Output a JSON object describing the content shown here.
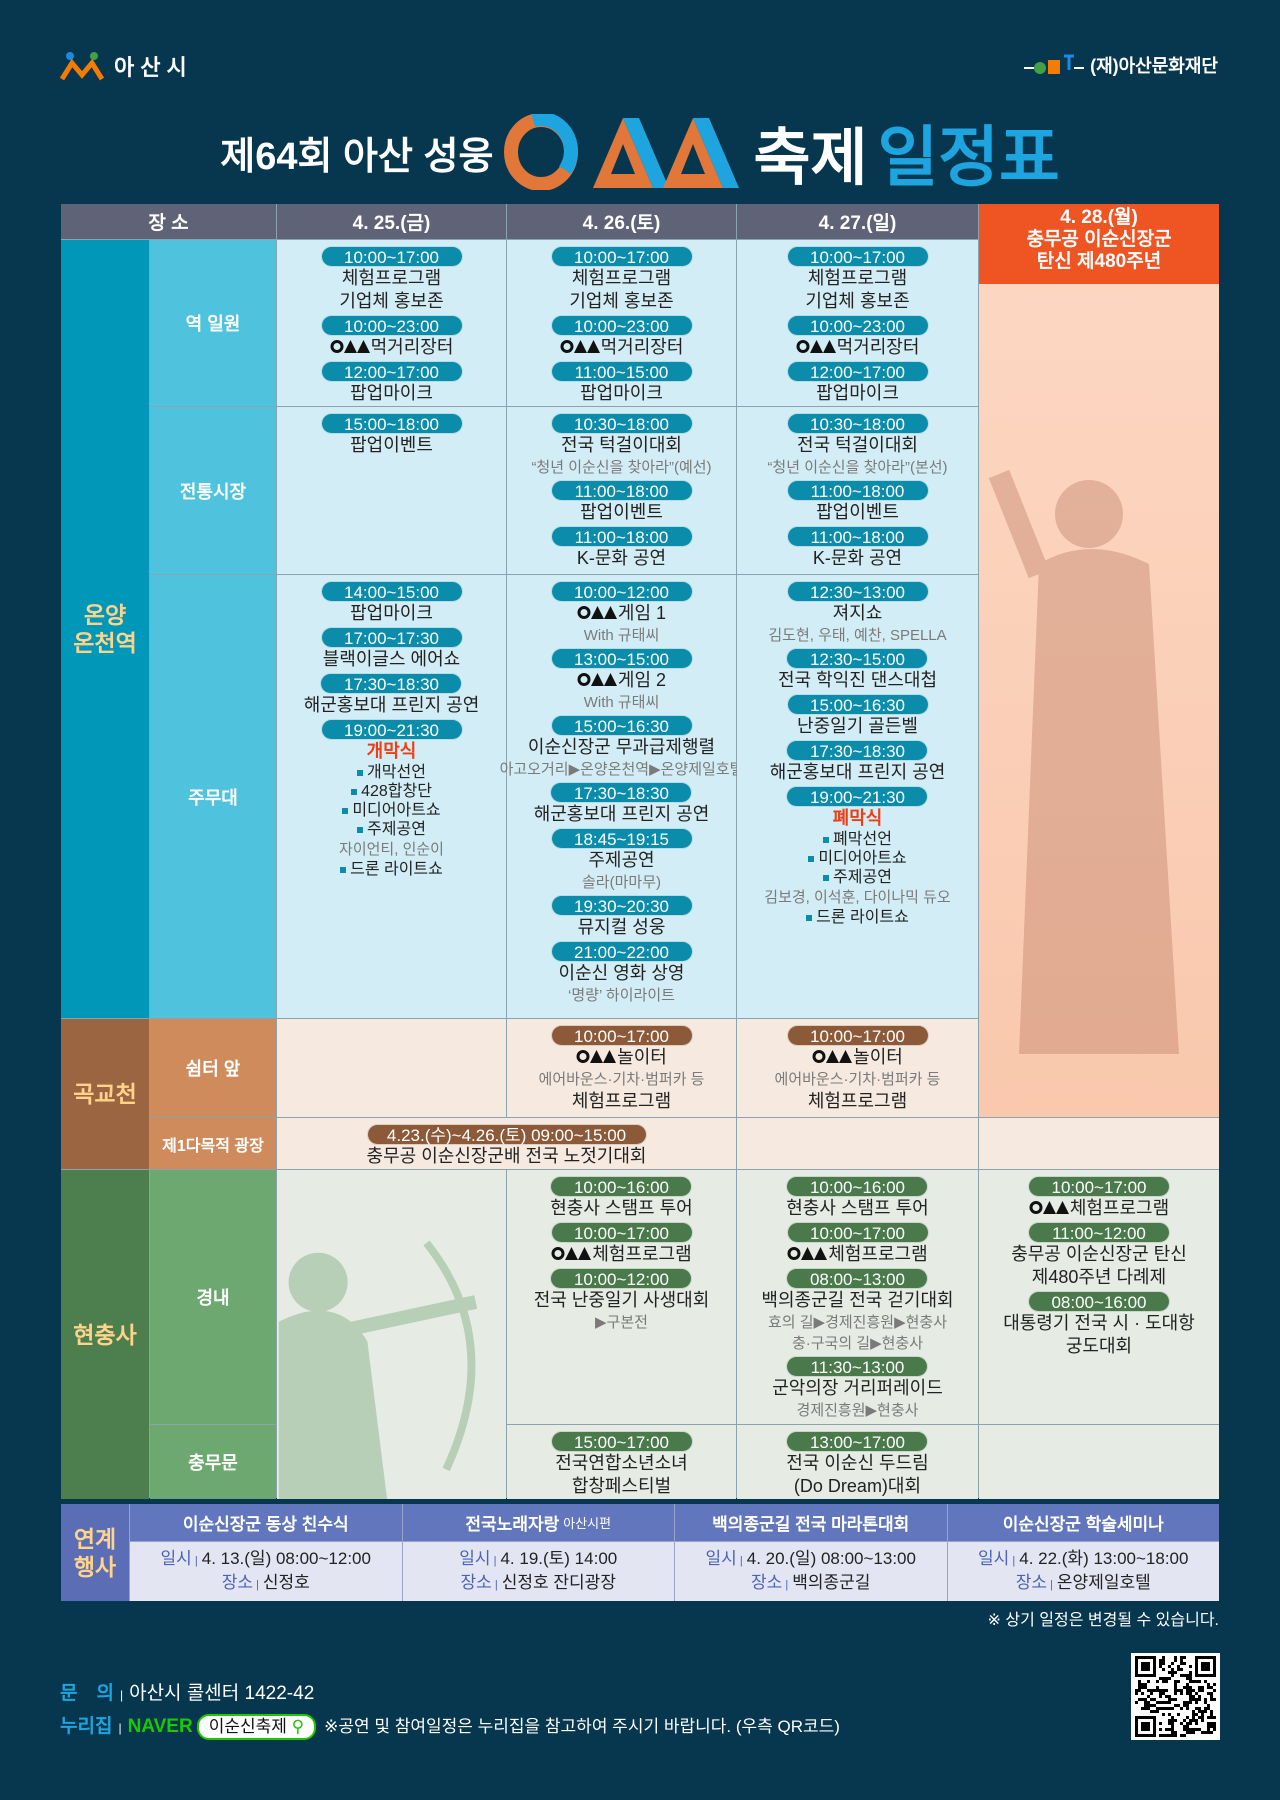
{
  "header": {
    "city_logo": "아산시",
    "foundation_logo": "(재)아산문화재단",
    "title_prefix": "제64회 아산 성웅",
    "title_mid": "축제",
    "title_suffix": "일정표"
  },
  "colors": {
    "background": "#06374f",
    "header_gray": "#5f6377",
    "day4_accent": "#ef5423",
    "title_accent": "#1ea5e0",
    "onyang": "#0097b8",
    "gokgyo": "#9a6540",
    "hyeonchungsa": "#4d7f4e",
    "events": "#6176bc"
  },
  "schedule": {
    "header": {
      "venue": "장 소",
      "d25": "4. 25.(금)",
      "d26": "4. 26.(토)",
      "d27": "4. 27.(일)",
      "d28": "4. 28.(월)\n충무공 이순신장군\n탄신 제480주년"
    },
    "groups": {
      "onyang": "온양\n온천역",
      "gokgyo": "곡교천",
      "hc": "현충사"
    },
    "venues": {
      "yeok": "역 일원",
      "market": "전통시장",
      "stage": "주무대",
      "shelter": "쉼터 앞",
      "plaza": "제1다목적 광장",
      "inner": "경내",
      "gate": "충무문"
    },
    "cells": {
      "yeok_d25": {
        "items": [
          {
            "time": "10:00~17:00",
            "lines": [
              {
                "t": "체험프로그램"
              },
              {
                "t": "기업체 홍보존"
              }
            ]
          },
          {
            "time": "10:00~23:00",
            "lines": [
              {
                "t": "먹거리장터",
                "o": true
              }
            ]
          },
          {
            "time": "12:00~17:00",
            "lines": [
              {
                "t": "팝업마이크"
              }
            ]
          }
        ]
      },
      "yeok_d26": {
        "items": [
          {
            "time": "10:00~17:00",
            "lines": [
              {
                "t": "체험프로그램"
              },
              {
                "t": "기업체 홍보존"
              }
            ]
          },
          {
            "time": "10:00~23:00",
            "lines": [
              {
                "t": "먹거리장터",
                "o": true
              }
            ]
          },
          {
            "time": "11:00~15:00",
            "lines": [
              {
                "t": "팝업마이크"
              }
            ]
          }
        ]
      },
      "yeok_d27": {
        "items": [
          {
            "time": "10:00~17:00",
            "lines": [
              {
                "t": "체험프로그램"
              },
              {
                "t": "기업체 홍보존"
              }
            ]
          },
          {
            "time": "10:00~23:00",
            "lines": [
              {
                "t": "먹거리장터",
                "o": true
              }
            ]
          },
          {
            "time": "12:00~17:00",
            "lines": [
              {
                "t": "팝업마이크"
              }
            ]
          }
        ]
      },
      "market_d25": {
        "items": [
          {
            "time": "15:00~18:00",
            "lines": [
              {
                "t": "팝업이벤트"
              }
            ]
          }
        ]
      },
      "market_d26": {
        "items": [
          {
            "time": "10:30~18:00",
            "lines": [
              {
                "t": "전국 턱걸이대회"
              },
              {
                "t": "“청년 이순신을 찾아라”(예선)",
                "k": "sub"
              }
            ]
          },
          {
            "time": "11:00~18:00",
            "lines": [
              {
                "t": "팝업이벤트"
              }
            ]
          },
          {
            "time": "11:00~18:00",
            "lines": [
              {
                "t": "K-문화 공연"
              }
            ]
          }
        ]
      },
      "market_d27": {
        "items": [
          {
            "time": "10:30~18:00",
            "lines": [
              {
                "t": "전국 턱걸이대회"
              },
              {
                "t": "“청년 이순신을 찾아라”(본선)",
                "k": "sub"
              }
            ]
          },
          {
            "time": "11:00~18:00",
            "lines": [
              {
                "t": "팝업이벤트"
              }
            ]
          },
          {
            "time": "11:00~18:00",
            "lines": [
              {
                "t": "K-문화 공연"
              }
            ]
          }
        ]
      },
      "stage_d25": {
        "items": [
          {
            "time": "14:00~15:00",
            "lines": [
              {
                "t": "팝업마이크"
              }
            ]
          },
          {
            "time": "17:00~17:30",
            "lines": [
              {
                "t": "블랙이글스 에어쇼"
              }
            ]
          },
          {
            "time": "17:30~18:30",
            "lines": [
              {
                "t": "해군홍보대 프린지 공연"
              }
            ]
          },
          {
            "time": "19:00~21:30",
            "lines": [
              {
                "t": "개막식",
                "k": "red"
              },
              {
                "t": "개막선언",
                "k": "bullet"
              },
              {
                "t": "428합창단",
                "k": "bullet"
              },
              {
                "t": "미디어아트쇼",
                "k": "bullet"
              },
              {
                "t": "주제공연",
                "k": "bullet"
              },
              {
                "t": "자이언티, 인순이",
                "k": "sub"
              },
              {
                "t": "드론 라이트쇼",
                "k": "bullet"
              }
            ]
          }
        ]
      },
      "stage_d26": {
        "items": [
          {
            "time": "10:00~12:00",
            "lines": [
              {
                "t": "게임 1",
                "o": true
              },
              {
                "t": "With 규태씨",
                "k": "sub"
              }
            ]
          },
          {
            "time": "13:00~15:00",
            "lines": [
              {
                "t": "게임 2",
                "o": true
              },
              {
                "t": "With 규태씨",
                "k": "sub"
              }
            ]
          },
          {
            "time": "15:00~16:30",
            "lines": [
              {
                "t": "이순신장군 무과급제행렬"
              },
              {
                "t": "아고오거리▶온양온천역▶온양제일호텔",
                "k": "sub"
              }
            ]
          },
          {
            "time": "17:30~18:30",
            "lines": [
              {
                "t": "해군홍보대 프린지 공연"
              }
            ]
          },
          {
            "time": "18:45~19:15",
            "lines": [
              {
                "t": "주제공연"
              },
              {
                "t": "솔라(마마무)",
                "k": "sub"
              }
            ]
          },
          {
            "time": "19:30~20:30",
            "lines": [
              {
                "t": "뮤지컬 성웅"
              }
            ]
          },
          {
            "time": "21:00~22:00",
            "lines": [
              {
                "t": "이순신 영화 상영"
              },
              {
                "t": "‘명량’ 하이라이트",
                "k": "sub"
              }
            ]
          }
        ]
      },
      "stage_d27": {
        "items": [
          {
            "time": "12:30~13:00",
            "lines": [
              {
                "t": "져지쇼"
              },
              {
                "t": "김도현, 우태, 예찬, SPELLA",
                "k": "sub"
              }
            ]
          },
          {
            "time": "12:30~15:00",
            "lines": [
              {
                "t": "전국 학익진 댄스대첩"
              }
            ]
          },
          {
            "time": "15:00~16:30",
            "lines": [
              {
                "t": "난중일기 골든벨"
              }
            ]
          },
          {
            "time": "17:30~18:30",
            "lines": [
              {
                "t": "해군홍보대 프린지 공연"
              }
            ]
          },
          {
            "time": "19:00~21:30",
            "lines": [
              {
                "t": "폐막식",
                "k": "red"
              },
              {
                "t": "폐막선언",
                "k": "bullet"
              },
              {
                "t": "미디어아트쇼",
                "k": "bullet"
              },
              {
                "t": "주제공연",
                "k": "bullet"
              },
              {
                "t": "김보경, 이석훈, 다이나믹 듀오",
                "k": "sub"
              },
              {
                "t": "드론 라이트쇼",
                "k": "bullet"
              }
            ]
          }
        ]
      },
      "shelter_d26": {
        "items": [
          {
            "time": "10:00~17:00",
            "lines": [
              {
                "t": "놀이터",
                "o": true
              },
              {
                "t": "에어바운스·기차·범퍼카 등",
                "k": "sub"
              },
              {
                "t": "체험프로그램"
              }
            ]
          }
        ]
      },
      "shelter_d27": {
        "items": [
          {
            "time": "10:00~17:00",
            "lines": [
              {
                "t": "놀이터",
                "o": true
              },
              {
                "t": "에어바운스·기차·범퍼카 등",
                "k": "sub"
              },
              {
                "t": "체험프로그램"
              }
            ]
          }
        ]
      },
      "plaza_d25_26": {
        "items": [
          {
            "time": "4.23.(수)~4.26.(토) 09:00~15:00",
            "lines": [
              {
                "t": "충무공 이순신장군배 전국 노젓기대회"
              }
            ]
          }
        ]
      },
      "inner_d26": {
        "items": [
          {
            "time": "10:00~16:00",
            "lines": [
              {
                "t": "현충사 스탬프 투어"
              }
            ]
          },
          {
            "time": "10:00~17:00",
            "lines": [
              {
                "t": "체험프로그램",
                "o": true
              }
            ]
          },
          {
            "time": "10:00~12:00",
            "lines": [
              {
                "t": "전국 난중일기 사생대회"
              },
              {
                "t": "▶구본전",
                "k": "sub"
              }
            ]
          }
        ]
      },
      "inner_d27": {
        "items": [
          {
            "time": "10:00~16:00",
            "lines": [
              {
                "t": "현충사 스탬프 투어"
              }
            ]
          },
          {
            "time": "10:00~17:00",
            "lines": [
              {
                "t": "체험프로그램",
                "o": true
              }
            ]
          },
          {
            "time": "08:00~13:00",
            "lines": [
              {
                "t": "백의종군길 전국 걷기대회"
              },
              {
                "t": "효의 길▶경제진흥원▶현충사",
                "k": "sub"
              },
              {
                "t": "충·구국의 길▶현충사",
                "k": "sub"
              }
            ]
          },
          {
            "time": "11:30~13:00",
            "lines": [
              {
                "t": "군악의장 거리퍼레이드"
              },
              {
                "t": "경제진흥원▶현충사",
                "k": "sub"
              }
            ]
          }
        ]
      },
      "inner_d28": {
        "items": [
          {
            "time": "10:00~17:00",
            "lines": [
              {
                "t": "체험프로그램",
                "o": true
              }
            ]
          },
          {
            "time": "11:00~12:00",
            "lines": [
              {
                "t": "충무공 이순신장군 탄신"
              },
              {
                "t": "제480주년 다례제"
              }
            ]
          },
          {
            "time": "08:00~16:00",
            "lines": [
              {
                "t": "대통령기 전국 시 · 도대항"
              },
              {
                "t": "궁도대회"
              }
            ]
          }
        ]
      },
      "gate_d26": {
        "items": [
          {
            "time": "15:00~17:00",
            "lines": [
              {
                "t": "전국연합소년소녀"
              },
              {
                "t": "합창페스티벌"
              }
            ]
          }
        ]
      },
      "gate_d27": {
        "items": [
          {
            "time": "13:00~17:00",
            "lines": [
              {
                "t": "전국 이순신 두드림"
              },
              {
                "t": "(Do Dream)대회"
              }
            ]
          }
        ]
      }
    }
  },
  "events": {
    "label": "연계\n행사",
    "date_label": "일시",
    "place_label": "장소",
    "items": [
      {
        "title": "이순신장군 동상 친수식",
        "suffix": "",
        "date": "4. 13.(일) 08:00~12:00",
        "place": "신정호"
      },
      {
        "title": "전국노래자랑",
        "suffix": "아산시편",
        "date": "4. 19.(토) 14:00",
        "place": "신정호 잔디광장"
      },
      {
        "title": "백의종군길 전국 마라톤대회",
        "suffix": "",
        "date": "4. 20.(일) 08:00~13:00",
        "place": "백의종군길"
      },
      {
        "title": "이순신장군 학술세미나",
        "suffix": "",
        "date": "4. 22.(화) 13:00~18:00",
        "place": "온양제일호텔"
      }
    ]
  },
  "note": "※ 상기 일정은 변경될 수 있습니다.",
  "footer": {
    "contact_label": "문　의",
    "contact": "아산시 콜센터 1422-42",
    "web_label": "누리집",
    "naver": "NAVER",
    "search_term": "이순신축제",
    "web_note": "※공연 및 참여일정은 누리집을 참고하여 주시기 바랍니다. (우측 QR코드)",
    "qr_icon": "qr-code"
  }
}
